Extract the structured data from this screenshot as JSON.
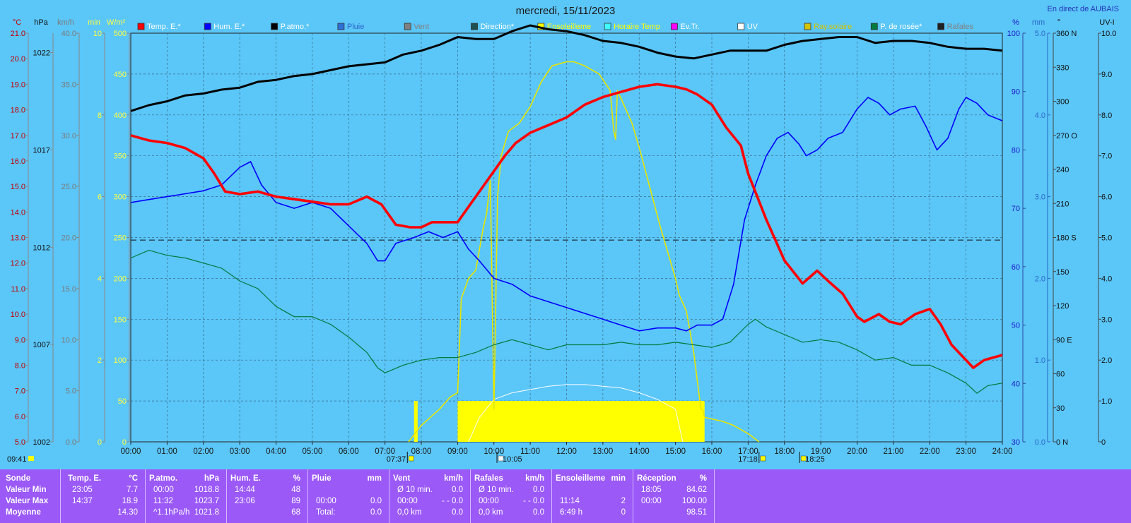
{
  "title": "mercredi, 15/11/2023",
  "live_label": "En direct de AUBAIS",
  "colors": {
    "background": "#5bc6f8",
    "temp": "#ff0000",
    "hum": "#0000ff",
    "patmo": "#000000",
    "dew": "#007a3d",
    "sun": "#ffff00",
    "table_bg": "#9b59f7"
  },
  "legend": [
    {
      "label": "Temp. E.*",
      "color": "#ff0000",
      "text_color": "#ffffff"
    },
    {
      "label": "Hum. E.*",
      "color": "#0000ff",
      "text_color": "#ffffff"
    },
    {
      "label": "P.atmo.*",
      "color": "#000000",
      "text_color": "#ffffff"
    },
    {
      "label": "Pluie",
      "color": "#2f6fd8",
      "text_color": "#2a67c8"
    },
    {
      "label": "Vent",
      "color": "#808080",
      "text_color": "#808080"
    },
    {
      "label": "Direction*",
      "color": "#1f4f4f",
      "text_color": "#ffffff"
    },
    {
      "label": "Ensoleilleme",
      "color": "#ffff00",
      "text_color": "#ffff00"
    },
    {
      "label": "Horaire Temp",
      "color": "#40ffff",
      "text_color": "#ffff00"
    },
    {
      "label": "Ev.Tr.",
      "color": "#ff00ff",
      "text_color": "#ffffff"
    },
    {
      "label": "UV",
      "color": "#ffffff",
      "text_color": "#ffffff"
    },
    {
      "label": "Ray.solaire",
      "color": "#d4c400",
      "text_color": "#d4c400"
    },
    {
      "label": "P. de rosée*",
      "color": "#007a3d",
      "text_color": "#ffffff"
    },
    {
      "label": "Rafales",
      "color": "#202020",
      "text_color": "#808080"
    }
  ],
  "axes": {
    "temp": {
      "unit": "°C",
      "ticks": [
        "21.0",
        "20.0",
        "19.0",
        "18.0",
        "17.0",
        "16.0",
        "15.0",
        "14.0",
        "13.0",
        "12.0",
        "11.0",
        "10.0",
        "9.0",
        "8.0",
        "7.0",
        "6.0",
        "5.0"
      ]
    },
    "pressure": {
      "unit": "hPa",
      "ticks": [
        "1022",
        "1017",
        "1012",
        "1007",
        "1002"
      ]
    },
    "wind": {
      "unit": "km/h",
      "ticks": [
        "40.0",
        "35.0",
        "30.0",
        "25.0",
        "20.0",
        "15.0",
        "10.0",
        "5.0",
        "0.0"
      ]
    },
    "sunshine": {
      "unit": "min",
      "ticks": [
        "10",
        "8",
        "6",
        "4",
        "2",
        "0"
      ]
    },
    "radiation": {
      "unit": "W/m²",
      "ticks": [
        "500",
        "450",
        "400",
        "350",
        "300",
        "250",
        "200",
        "150",
        "100",
        "50",
        "0"
      ]
    },
    "humidity": {
      "unit": "%",
      "ticks": [
        "100",
        "90",
        "80",
        "70",
        "60",
        "50",
        "40",
        "30"
      ]
    },
    "rain": {
      "unit": "mm",
      "ticks": [
        "5.0",
        "4.0",
        "3.0",
        "2.0",
        "1.0",
        "0.0"
      ]
    },
    "direction": {
      "unit": "°",
      "ticks": [
        "360 N",
        "330",
        "300",
        "270 O",
        "240",
        "210",
        "180 S",
        "150",
        "120",
        "90  E",
        "60",
        "30",
        "0    N"
      ]
    },
    "uv": {
      "unit": "UV-I",
      "ticks": [
        "10.0",
        "9.0",
        "8.0",
        "7.0",
        "6.0",
        "5.0",
        "4.0",
        "3.0",
        "2.0",
        "1.0",
        "0"
      ]
    },
    "x_ticks": [
      "00:00",
      "01:00",
      "02:00",
      "03:00",
      "04:00",
      "05:00",
      "06:00",
      "07:00",
      "08:00",
      "09:00",
      "10:00",
      "11:00",
      "12:00",
      "13:00",
      "14:00",
      "15:00",
      "16:00",
      "17:00",
      "18:00",
      "19:00",
      "20:00",
      "21:00",
      "22:00",
      "23:00",
      "24:00"
    ]
  },
  "markers": {
    "update_time": "09:41",
    "sunrise": "07:37",
    "noon": "10:05",
    "sunset": "17:18",
    "moon": "18:25"
  },
  "chart_data": {
    "type": "line",
    "title": "mercredi, 15/11/2023",
    "x_unit": "hour",
    "xlim": [
      0,
      24
    ],
    "reference_line": {
      "y_temp": 12.9
    },
    "series": [
      {
        "name": "Temp. E.*",
        "axis": "°C",
        "ylim": [
          5,
          21
        ],
        "x": [
          0,
          0.5,
          1,
          1.5,
          2,
          2.3,
          2.6,
          3,
          3.5,
          4,
          4.5,
          5,
          5.5,
          6,
          6.5,
          6.9,
          7.3,
          7.7,
          8,
          8.3,
          8.6,
          9,
          9.3,
          9.6,
          10,
          10.3,
          10.6,
          11,
          11.5,
          12,
          12.5,
          13,
          13.5,
          14,
          14.5,
          15,
          15.3,
          15.6,
          16,
          16.4,
          16.8,
          17,
          17.5,
          18,
          18.5,
          18.9,
          19.2,
          19.6,
          20,
          20.2,
          20.6,
          20.9,
          21.2,
          21.6,
          22,
          22.3,
          22.6,
          23,
          23.2,
          23.5,
          24
        ],
        "values": [
          17.0,
          16.8,
          16.7,
          16.5,
          16.1,
          15.5,
          14.8,
          14.7,
          14.8,
          14.6,
          14.5,
          14.4,
          14.3,
          14.3,
          14.6,
          14.3,
          13.5,
          13.4,
          13.4,
          13.6,
          13.6,
          13.6,
          14.2,
          14.8,
          15.6,
          16.2,
          16.7,
          17.1,
          17.4,
          17.7,
          18.2,
          18.5,
          18.7,
          18.9,
          19.0,
          18.9,
          18.8,
          18.6,
          18.2,
          17.3,
          16.6,
          15.5,
          13.7,
          12.1,
          11.2,
          11.7,
          11.3,
          10.8,
          9.9,
          9.7,
          10.0,
          9.7,
          9.6,
          10.0,
          10.2,
          9.6,
          8.8,
          8.2,
          7.9,
          8.2,
          8.4
        ]
      },
      {
        "name": "Hum. E.*",
        "axis": "%",
        "ylim": [
          30,
          100
        ],
        "x": [
          0,
          0.5,
          1,
          1.5,
          2,
          2.5,
          3,
          3.3,
          3.6,
          4,
          4.5,
          5,
          5.5,
          6,
          6.5,
          6.8,
          7,
          7.3,
          7.8,
          8.2,
          8.6,
          9,
          9.3,
          9.6,
          10,
          10.5,
          11,
          11.5,
          12,
          12.5,
          13,
          13.5,
          14,
          14.5,
          15,
          15.3,
          15.6,
          16,
          16.3,
          16.6,
          16.9,
          17.2,
          17.5,
          17.8,
          18.1,
          18.4,
          18.6,
          18.9,
          19.2,
          19.6,
          20,
          20.3,
          20.6,
          20.9,
          21.2,
          21.6,
          21.9,
          22.2,
          22.5,
          22.8,
          23,
          23.3,
          23.6,
          24
        ],
        "values": [
          71,
          71.5,
          72,
          72.5,
          73,
          74,
          77,
          78,
          74,
          71,
          70,
          71,
          70,
          67,
          64,
          61,
          61,
          64,
          65,
          66,
          65,
          66,
          63,
          61,
          58,
          57,
          55,
          54,
          53,
          52,
          51,
          50,
          49,
          49.5,
          49.5,
          49,
          50,
          50,
          51,
          57,
          68,
          74,
          79,
          82,
          83,
          81,
          79,
          80,
          82,
          83,
          87,
          89,
          88,
          86,
          87,
          87.5,
          84,
          80,
          82,
          87,
          89,
          88,
          86,
          85
        ]
      },
      {
        "name": "P.atmo.*",
        "axis": "hPa",
        "ylim": [
          1002,
          1023
        ],
        "x": [
          0,
          0.5,
          1,
          1.5,
          2,
          2.5,
          3,
          3.5,
          4,
          4.5,
          5,
          5.5,
          6,
          6.5,
          7,
          7.5,
          8,
          8.5,
          9,
          9.5,
          10,
          10.5,
          11,
          11.5,
          12,
          12.5,
          13,
          13.5,
          14,
          14.5,
          15,
          15.5,
          16,
          16.5,
          17,
          17.5,
          18,
          18.5,
          19,
          19.5,
          20,
          20.5,
          21,
          21.5,
          22,
          22.5,
          23,
          23.5,
          24
        ],
        "values": [
          1019.0,
          1019.3,
          1019.5,
          1019.8,
          1019.9,
          1020.1,
          1020.2,
          1020.5,
          1020.6,
          1020.8,
          1020.9,
          1021.1,
          1021.3,
          1021.4,
          1021.5,
          1021.9,
          1022.1,
          1022.4,
          1022.8,
          1022.7,
          1022.7,
          1023.1,
          1023.4,
          1023.2,
          1023.1,
          1022.9,
          1022.6,
          1022.5,
          1022.3,
          1022.0,
          1021.8,
          1021.7,
          1021.9,
          1022.1,
          1022.1,
          1022.1,
          1022.4,
          1022.6,
          1022.7,
          1022.8,
          1022.8,
          1022.5,
          1022.6,
          1022.6,
          1022.5,
          1022.3,
          1022.2,
          1022.2,
          1022.1
        ]
      },
      {
        "name": "P. de rosée*",
        "axis": "°C",
        "ylim": [
          5,
          21
        ],
        "x": [
          0,
          0.5,
          1,
          1.5,
          2,
          2.5,
          3,
          3.5,
          4,
          4.5,
          5,
          5.5,
          6,
          6.5,
          6.8,
          7,
          7.5,
          8,
          8.5,
          9,
          9.5,
          10,
          10.5,
          11,
          11.5,
          12,
          12.5,
          13,
          13.5,
          14,
          14.5,
          15,
          15.5,
          16,
          16.5,
          17,
          17.2,
          17.5,
          18,
          18.5,
          19,
          19.5,
          20,
          20.5,
          21,
          21.5,
          22,
          22.5,
          23,
          23.3,
          23.6,
          24
        ],
        "values": [
          12.2,
          12.5,
          12.3,
          12.2,
          12.0,
          11.8,
          11.3,
          11.0,
          10.3,
          9.9,
          9.9,
          9.6,
          9.1,
          8.5,
          7.9,
          7.7,
          8.0,
          8.2,
          8.3,
          8.3,
          8.5,
          8.8,
          9.0,
          8.8,
          8.6,
          8.8,
          8.8,
          8.8,
          8.9,
          8.8,
          8.8,
          8.9,
          8.8,
          8.7,
          8.9,
          9.6,
          9.8,
          9.5,
          9.2,
          8.9,
          9.0,
          8.9,
          8.6,
          8.2,
          8.3,
          8.0,
          8.0,
          7.7,
          7.3,
          6.9,
          7.2,
          7.3
        ]
      },
      {
        "name": "Ray.solaire",
        "axis": "W/m²",
        "ylim": [
          0,
          500
        ],
        "x": [
          7.65,
          8,
          8.5,
          8.8,
          9,
          9.1,
          9.3,
          9.5,
          9.7,
          9.8,
          9.9,
          10,
          10.1,
          10.2,
          10.4,
          10.7,
          11,
          11.3,
          11.6,
          12,
          12.2,
          12.5,
          12.9,
          13.2,
          13.3,
          13.35,
          13.4,
          13.5,
          13.8,
          14,
          14.3,
          14.6,
          15,
          15.1,
          15.2,
          15.3,
          15.5,
          15.7,
          15.75,
          15.8,
          16,
          16.3,
          16.6,
          17,
          17.3
        ],
        "values": [
          0,
          20,
          40,
          55,
          60,
          175,
          200,
          210,
          260,
          280,
          320,
          40,
          300,
          350,
          380,
          390,
          410,
          440,
          460,
          465,
          465,
          460,
          450,
          430,
          380,
          370,
          430,
          420,
          390,
          360,
          310,
          260,
          200,
          180,
          170,
          160,
          110,
          40,
          40,
          30,
          28,
          25,
          20,
          10,
          0
        ]
      },
      {
        "name": "Horaire Temp",
        "axis": "W/m²",
        "ylim": [
          0,
          500
        ],
        "x": [
          9.3,
          9.6,
          10,
          10.5,
          11,
          11.5,
          12,
          12.5,
          13,
          13.5,
          14,
          14.5,
          15,
          15.2
        ],
        "values": [
          0,
          30,
          52,
          60,
          64,
          68,
          70,
          70,
          68,
          66,
          60,
          52,
          40,
          0
        ]
      },
      {
        "name": "Ensoleilleme",
        "axis": "min",
        "ylim": [
          0,
          10
        ],
        "x": [
          7.8,
          7.9,
          9.0,
          15.8
        ],
        "values": [
          1.0,
          0,
          1.0,
          0
        ]
      }
    ]
  },
  "stats": {
    "sonde": {
      "label": "Sonde",
      "rows": [
        "Valeur Min",
        "Valeur Max",
        "Moyenne"
      ]
    },
    "temp": {
      "title": "Temp. E.",
      "unit": "°C",
      "rows": [
        [
          "23:05",
          "7.7"
        ],
        [
          "14:37",
          "18.9"
        ],
        [
          "",
          "14.30"
        ]
      ]
    },
    "patmo": {
      "title": "P.atmo.",
      "unit": "hPa",
      "rows": [
        [
          "00:00",
          "1018.8"
        ],
        [
          "11:32",
          "1023.7"
        ],
        [
          "^1.1hPa/h",
          "1021.8"
        ]
      ]
    },
    "hum": {
      "title": "Hum. E.",
      "unit": "%",
      "rows": [
        [
          "14:44",
          "48"
        ],
        [
          "23:06",
          "89"
        ],
        [
          "",
          "68"
        ]
      ]
    },
    "pluie": {
      "title": "Pluie",
      "unit": "mm",
      "rows": [
        [
          "",
          ""
        ],
        [
          "00:00",
          "0.0"
        ],
        [
          "Total:",
          "0.0"
        ]
      ]
    },
    "vent": {
      "title": "Vent",
      "unit": "km/h",
      "rows": [
        [
          "Ø 10 min.",
          "0.0"
        ],
        [
          "00:00",
          "- - 0.0"
        ],
        [
          "0,0 km",
          "0.0"
        ]
      ]
    },
    "rafales": {
      "title": "Rafales",
      "unit": "km/h",
      "rows": [
        [
          "Ø 10 min.",
          "0.0"
        ],
        [
          "00:00",
          "- - 0.0"
        ],
        [
          "0,0 km",
          "0.0"
        ]
      ]
    },
    "soleil": {
      "title": "Ensoleilleme",
      "unit": "min",
      "rows": [
        [
          "",
          ""
        ],
        [
          "11:14",
          "2"
        ],
        [
          "6:49 h",
          "0"
        ]
      ]
    },
    "reception": {
      "title": "Réception",
      "unit": "%",
      "rows": [
        [
          "18:05",
          "84.62"
        ],
        [
          "00:00",
          "100.00"
        ],
        [
          "",
          "98.51"
        ]
      ]
    }
  }
}
